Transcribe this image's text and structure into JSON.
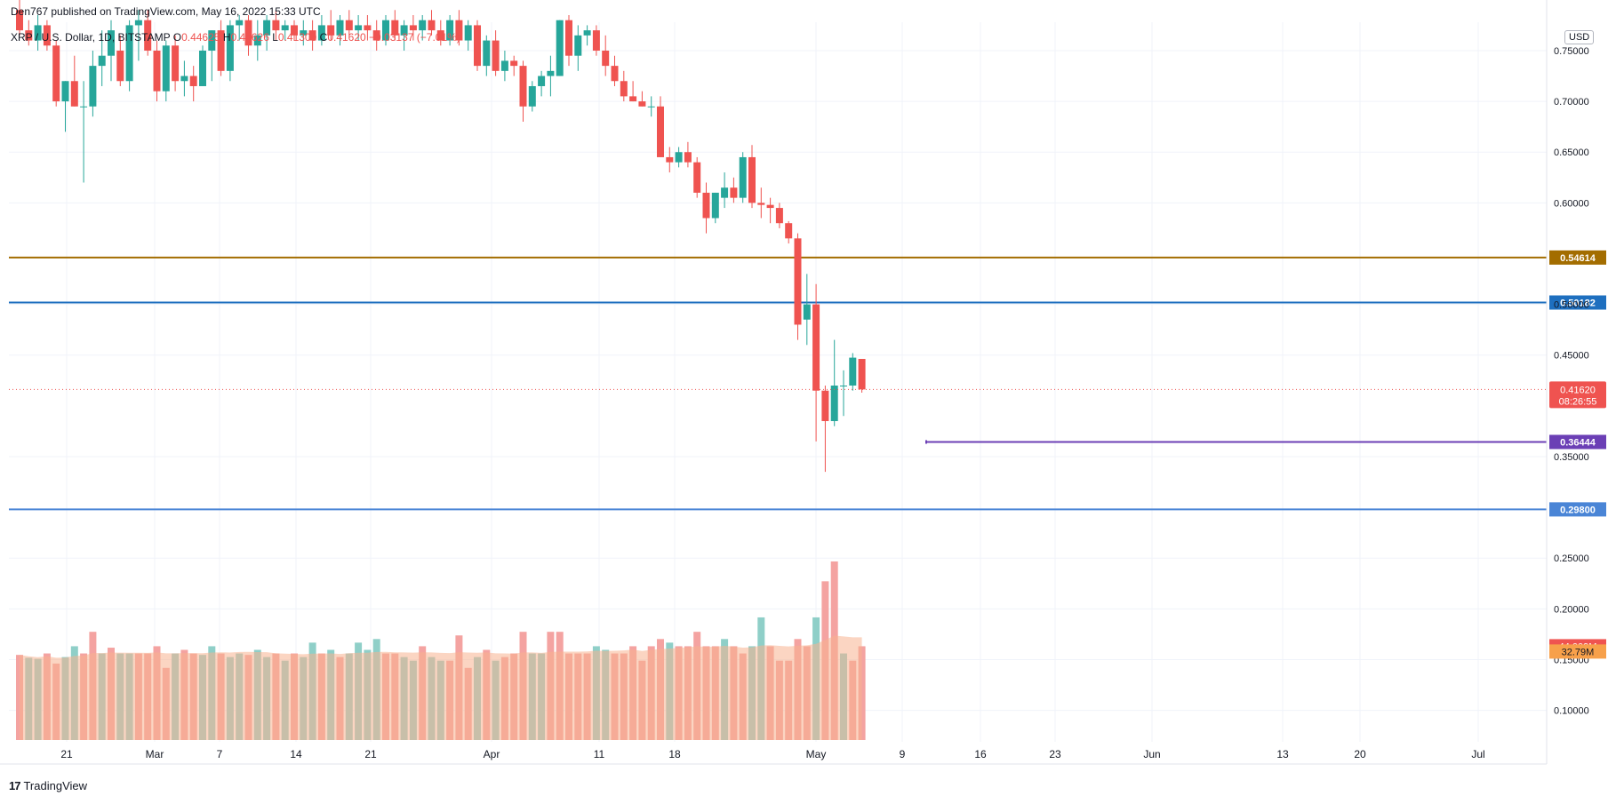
{
  "header": {
    "published": "Den767 published on TradingView.com, May 16, 2022 15:33 UTC",
    "symbol": "XRP / U.S. Dollar, 1D, BITSTAMP",
    "ohlc_prefix_o": "O",
    "ohlc_o": "0.44625",
    "ohlc_prefix_h": "H",
    "ohlc_h": "0.44626",
    "ohlc_prefix_l": "L",
    "ohlc_l": "0.41300",
    "ohlc_prefix_c": "C",
    "ohlc_c": "0.41620",
    "change": "−0.03137 (−7.01%)"
  },
  "currency_button": "USD",
  "footer": {
    "logo": "TradingView"
  },
  "colors": {
    "up": "#26a69a",
    "down": "#ef5350",
    "vol_up": "#8fcfc8",
    "vol_down": "#f4a3a1",
    "vol_ma": "#f7b38f",
    "line_orange": "#a36d00",
    "line_blue": "#1e6fbf",
    "line_purple": "#6b3fb5",
    "line_blue2": "#4a85d6",
    "tag_price": "#ef5350",
    "tag_vol_ma": "#f7a04a"
  },
  "chart_data": {
    "type": "candlestick",
    "x_tick_labels": [
      "21",
      "Mar",
      "7",
      "14",
      "21",
      "Apr",
      "11",
      "18",
      "May",
      "9",
      "16",
      "23",
      "Jun",
      "13",
      "20",
      "Jul"
    ],
    "y_tick_labels": [
      "0.75000",
      "0.70000",
      "0.65000",
      "0.60000",
      "0.50000",
      "0.45000",
      "0.35000",
      "0.25000",
      "0.20000",
      "0.15000",
      "0.10000"
    ],
    "y_ticks": [
      0.75,
      0.7,
      0.65,
      0.6,
      0.5,
      0.45,
      0.35,
      0.25,
      0.2,
      0.15,
      0.1
    ],
    "ylim": [
      0.069,
      0.778
    ],
    "last_price": 0.4162,
    "last_price_label": "0.41620",
    "countdown": "08:26:55",
    "volume_label": "44.009M",
    "volume_ma_label": "32.79M",
    "horizontal_lines": [
      {
        "value": 0.54614,
        "label": "0.54614",
        "color": "#a36d00",
        "style": "full"
      },
      {
        "value": 0.50182,
        "label": "0.50182",
        "color": "#1e6fbf",
        "style": "full"
      },
      {
        "value": 0.36444,
        "label": "0.36444",
        "color": "#6b3fb5",
        "style": "partial"
      },
      {
        "value": 0.298,
        "label": "0.29800",
        "color": "#4a85d6",
        "style": "full"
      }
    ],
    "candles": [
      {
        "o": 0.79,
        "h": 0.8,
        "l": 0.765,
        "c": 0.77
      },
      {
        "o": 0.77,
        "h": 0.78,
        "l": 0.755,
        "c": 0.76
      },
      {
        "o": 0.76,
        "h": 0.785,
        "l": 0.75,
        "c": 0.775
      },
      {
        "o": 0.775,
        "h": 0.78,
        "l": 0.75,
        "c": 0.755
      },
      {
        "o": 0.755,
        "h": 0.76,
        "l": 0.695,
        "c": 0.7
      },
      {
        "o": 0.7,
        "h": 0.72,
        "l": 0.67,
        "c": 0.72
      },
      {
        "o": 0.72,
        "h": 0.745,
        "l": 0.695,
        "c": 0.695
      },
      {
        "o": 0.695,
        "h": 0.72,
        "l": 0.62,
        "c": 0.695
      },
      {
        "o": 0.695,
        "h": 0.75,
        "l": 0.685,
        "c": 0.735
      },
      {
        "o": 0.735,
        "h": 0.77,
        "l": 0.715,
        "c": 0.745
      },
      {
        "o": 0.745,
        "h": 0.78,
        "l": 0.72,
        "c": 0.77
      },
      {
        "o": 0.75,
        "h": 0.765,
        "l": 0.715,
        "c": 0.72
      },
      {
        "o": 0.72,
        "h": 0.78,
        "l": 0.71,
        "c": 0.775
      },
      {
        "o": 0.775,
        "h": 0.79,
        "l": 0.74,
        "c": 0.78
      },
      {
        "o": 0.78,
        "h": 0.79,
        "l": 0.745,
        "c": 0.75
      },
      {
        "o": 0.75,
        "h": 0.76,
        "l": 0.7,
        "c": 0.71
      },
      {
        "o": 0.71,
        "h": 0.76,
        "l": 0.7,
        "c": 0.755
      },
      {
        "o": 0.755,
        "h": 0.765,
        "l": 0.71,
        "c": 0.72
      },
      {
        "o": 0.72,
        "h": 0.74,
        "l": 0.705,
        "c": 0.725
      },
      {
        "o": 0.725,
        "h": 0.735,
        "l": 0.7,
        "c": 0.715
      },
      {
        "o": 0.715,
        "h": 0.755,
        "l": 0.715,
        "c": 0.75
      },
      {
        "o": 0.75,
        "h": 0.77,
        "l": 0.72,
        "c": 0.77
      },
      {
        "o": 0.77,
        "h": 0.78,
        "l": 0.725,
        "c": 0.73
      },
      {
        "o": 0.73,
        "h": 0.78,
        "l": 0.72,
        "c": 0.775
      },
      {
        "o": 0.775,
        "h": 0.785,
        "l": 0.76,
        "c": 0.78
      },
      {
        "o": 0.78,
        "h": 0.785,
        "l": 0.745,
        "c": 0.755
      },
      {
        "o": 0.755,
        "h": 0.78,
        "l": 0.74,
        "c": 0.765
      },
      {
        "o": 0.765,
        "h": 0.785,
        "l": 0.75,
        "c": 0.78
      },
      {
        "o": 0.78,
        "h": 0.79,
        "l": 0.76,
        "c": 0.77
      },
      {
        "o": 0.77,
        "h": 0.78,
        "l": 0.76,
        "c": 0.775
      },
      {
        "o": 0.775,
        "h": 0.78,
        "l": 0.76,
        "c": 0.765
      },
      {
        "o": 0.765,
        "h": 0.78,
        "l": 0.755,
        "c": 0.77
      },
      {
        "o": 0.77,
        "h": 0.78,
        "l": 0.75,
        "c": 0.76
      },
      {
        "o": 0.76,
        "h": 0.785,
        "l": 0.755,
        "c": 0.775
      },
      {
        "o": 0.775,
        "h": 0.79,
        "l": 0.76,
        "c": 0.765
      },
      {
        "o": 0.765,
        "h": 0.785,
        "l": 0.755,
        "c": 0.78
      },
      {
        "o": 0.78,
        "h": 0.79,
        "l": 0.765,
        "c": 0.77
      },
      {
        "o": 0.77,
        "h": 0.785,
        "l": 0.76,
        "c": 0.775
      },
      {
        "o": 0.775,
        "h": 0.785,
        "l": 0.76,
        "c": 0.77
      },
      {
        "o": 0.77,
        "h": 0.78,
        "l": 0.75,
        "c": 0.76
      },
      {
        "o": 0.76,
        "h": 0.785,
        "l": 0.755,
        "c": 0.78
      },
      {
        "o": 0.78,
        "h": 0.79,
        "l": 0.76,
        "c": 0.765
      },
      {
        "o": 0.765,
        "h": 0.78,
        "l": 0.75,
        "c": 0.775
      },
      {
        "o": 0.775,
        "h": 0.785,
        "l": 0.76,
        "c": 0.77
      },
      {
        "o": 0.77,
        "h": 0.785,
        "l": 0.76,
        "c": 0.78
      },
      {
        "o": 0.78,
        "h": 0.79,
        "l": 0.765,
        "c": 0.77
      },
      {
        "o": 0.77,
        "h": 0.78,
        "l": 0.755,
        "c": 0.76
      },
      {
        "o": 0.76,
        "h": 0.785,
        "l": 0.755,
        "c": 0.78
      },
      {
        "o": 0.78,
        "h": 0.79,
        "l": 0.755,
        "c": 0.76
      },
      {
        "o": 0.76,
        "h": 0.78,
        "l": 0.75,
        "c": 0.775
      },
      {
        "o": 0.775,
        "h": 0.78,
        "l": 0.73,
        "c": 0.735
      },
      {
        "o": 0.735,
        "h": 0.765,
        "l": 0.725,
        "c": 0.76
      },
      {
        "o": 0.76,
        "h": 0.77,
        "l": 0.725,
        "c": 0.73
      },
      {
        "o": 0.73,
        "h": 0.75,
        "l": 0.72,
        "c": 0.74
      },
      {
        "o": 0.74,
        "h": 0.745,
        "l": 0.725,
        "c": 0.735
      },
      {
        "o": 0.735,
        "h": 0.74,
        "l": 0.68,
        "c": 0.695
      },
      {
        "o": 0.695,
        "h": 0.72,
        "l": 0.69,
        "c": 0.715
      },
      {
        "o": 0.715,
        "h": 0.73,
        "l": 0.705,
        "c": 0.725
      },
      {
        "o": 0.725,
        "h": 0.745,
        "l": 0.705,
        "c": 0.73
      },
      {
        "o": 0.725,
        "h": 0.78,
        "l": 0.725,
        "c": 0.78
      },
      {
        "o": 0.78,
        "h": 0.785,
        "l": 0.735,
        "c": 0.745
      },
      {
        "o": 0.745,
        "h": 0.775,
        "l": 0.73,
        "c": 0.765
      },
      {
        "o": 0.765,
        "h": 0.775,
        "l": 0.755,
        "c": 0.77
      },
      {
        "o": 0.77,
        "h": 0.775,
        "l": 0.745,
        "c": 0.75
      },
      {
        "o": 0.75,
        "h": 0.765,
        "l": 0.725,
        "c": 0.735
      },
      {
        "o": 0.735,
        "h": 0.745,
        "l": 0.715,
        "c": 0.72
      },
      {
        "o": 0.72,
        "h": 0.73,
        "l": 0.7,
        "c": 0.705
      },
      {
        "o": 0.705,
        "h": 0.72,
        "l": 0.7,
        "c": 0.7
      },
      {
        "o": 0.7,
        "h": 0.71,
        "l": 0.695,
        "c": 0.695
      },
      {
        "o": 0.695,
        "h": 0.705,
        "l": 0.685,
        "c": 0.695
      },
      {
        "o": 0.695,
        "h": 0.705,
        "l": 0.645,
        "c": 0.645
      },
      {
        "o": 0.645,
        "h": 0.655,
        "l": 0.63,
        "c": 0.64
      },
      {
        "o": 0.64,
        "h": 0.655,
        "l": 0.635,
        "c": 0.65
      },
      {
        "o": 0.65,
        "h": 0.66,
        "l": 0.635,
        "c": 0.64
      },
      {
        "o": 0.64,
        "h": 0.645,
        "l": 0.605,
        "c": 0.61
      },
      {
        "o": 0.61,
        "h": 0.62,
        "l": 0.57,
        "c": 0.585
      },
      {
        "o": 0.585,
        "h": 0.61,
        "l": 0.58,
        "c": 0.61
      },
      {
        "o": 0.605,
        "h": 0.63,
        "l": 0.595,
        "c": 0.615
      },
      {
        "o": 0.615,
        "h": 0.625,
        "l": 0.6,
        "c": 0.605
      },
      {
        "o": 0.605,
        "h": 0.65,
        "l": 0.6,
        "c": 0.645
      },
      {
        "o": 0.645,
        "h": 0.657,
        "l": 0.595,
        "c": 0.6
      },
      {
        "o": 0.6,
        "h": 0.615,
        "l": 0.585,
        "c": 0.598
      },
      {
        "o": 0.598,
        "h": 0.605,
        "l": 0.58,
        "c": 0.595
      },
      {
        "o": 0.595,
        "h": 0.6,
        "l": 0.575,
        "c": 0.58
      },
      {
        "o": 0.58,
        "h": 0.582,
        "l": 0.56,
        "c": 0.565
      },
      {
        "o": 0.565,
        "h": 0.57,
        "l": 0.465,
        "c": 0.48
      },
      {
        "o": 0.485,
        "h": 0.53,
        "l": 0.46,
        "c": 0.5
      },
      {
        "o": 0.5,
        "h": 0.52,
        "l": 0.365,
        "c": 0.415
      },
      {
        "o": 0.415,
        "h": 0.42,
        "l": 0.335,
        "c": 0.385
      },
      {
        "o": 0.385,
        "h": 0.465,
        "l": 0.38,
        "c": 0.42
      },
      {
        "o": 0.42,
        "h": 0.435,
        "l": 0.39,
        "c": 0.42
      },
      {
        "o": 0.42,
        "h": 0.452,
        "l": 0.415,
        "c": 0.4475
      },
      {
        "o": 0.44625,
        "h": 0.44626,
        "l": 0.413,
        "c": 0.4162
      }
    ],
    "volume_max_value": 0.2475,
    "volumes": [
      0.118,
      0.114,
      0.1125,
      0.12,
      0.106,
      0.115,
      0.13,
      0.12,
      0.15,
      0.12,
      0.128,
      0.12,
      0.12,
      0.12,
      0.12,
      0.13,
      0.1,
      0.12,
      0.125,
      0.12,
      0.118,
      0.13,
      0.12,
      0.115,
      0.12,
      0.118,
      0.125,
      0.115,
      0.12,
      0.11,
      0.12,
      0.115,
      0.135,
      0.12,
      0.125,
      0.115,
      0.12,
      0.135,
      0.125,
      0.14,
      0.12,
      0.12,
      0.115,
      0.11,
      0.13,
      0.115,
      0.11,
      0.11,
      0.145,
      0.1,
      0.115,
      0.125,
      0.11,
      0.115,
      0.12,
      0.15,
      0.12,
      0.12,
      0.15,
      0.15,
      0.12,
      0.12,
      0.12,
      0.13,
      0.125,
      0.12,
      0.12,
      0.13,
      0.11,
      0.13,
      0.14,
      0.135,
      0.13,
      0.13,
      0.15,
      0.13,
      0.13,
      0.14,
      0.13,
      0.12,
      0.13,
      0.17,
      0.13,
      0.11,
      0.11,
      0.14,
      0.13,
      0.17,
      0.22,
      0.2475,
      0.12,
      0.11,
      0.13
    ],
    "volume_dir": [
      "down",
      "up",
      "up",
      "down",
      "down",
      "up",
      "up",
      "down",
      "down",
      "up",
      "down",
      "up",
      "up",
      "down",
      "down",
      "down",
      "down",
      "up",
      "down",
      "down",
      "up",
      "up",
      "down",
      "up",
      "up",
      "down",
      "up",
      "up",
      "down",
      "up",
      "down",
      "up",
      "up",
      "down",
      "up",
      "down",
      "up",
      "up",
      "up",
      "up",
      "down",
      "down",
      "up",
      "up",
      "down",
      "up",
      "up",
      "down",
      "down",
      "down",
      "up",
      "down",
      "up",
      "down",
      "down",
      "down",
      "up",
      "up",
      "down",
      "down",
      "down",
      "down",
      "down",
      "up",
      "up",
      "down",
      "down",
      "down",
      "down",
      "down",
      "down",
      "up",
      "down",
      "down",
      "down",
      "down",
      "down",
      "up",
      "down",
      "down",
      "up",
      "up",
      "down",
      "down",
      "down",
      "down",
      "down",
      "up",
      "down",
      "down",
      "up",
      "down",
      "down"
    ]
  }
}
